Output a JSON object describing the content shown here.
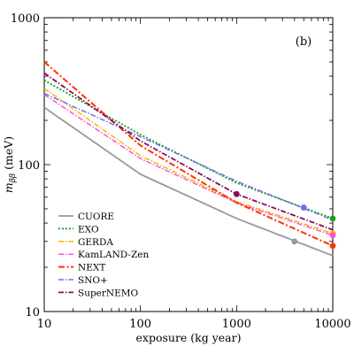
{
  "chart_data": {
    "type": "line",
    "panel_label": "(b)",
    "xlabel": "exposure (kg year)",
    "ylabel_main": "m",
    "ylabel_sub": "ββ",
    "ylabel_unit": "(meV)",
    "xscale": "log",
    "yscale": "log",
    "xlim": [
      10,
      10000
    ],
    "ylim": [
      10,
      1000
    ],
    "x_ticks": [
      {
        "value": 10,
        "label": "10"
      },
      {
        "value": 100,
        "label": "100"
      },
      {
        "value": 1000,
        "label": "1000"
      },
      {
        "value": 10000,
        "label": "10000"
      }
    ],
    "y_ticks": [
      {
        "value": 10,
        "label": "10"
      },
      {
        "value": 100,
        "label": "100"
      },
      {
        "value": 1000,
        "label": "1000"
      }
    ],
    "grid": false,
    "legend_position": "lower-left",
    "series": [
      {
        "name": "CUORE",
        "color": "#999999",
        "dash": "solid",
        "width": 1.8,
        "x": [
          10,
          100,
          1000,
          10000
        ],
        "y": [
          245,
          86,
          43,
          24
        ],
        "marker": {
          "x": 4000,
          "y": 30
        }
      },
      {
        "name": "EXO",
        "color": "#1a9e1a",
        "dash": "dot",
        "width": 1.8,
        "x": [
          10,
          100,
          1000,
          10000
        ],
        "y": [
          375,
          160,
          75,
          43
        ],
        "marker": {
          "x": 10000,
          "y": 43
        }
      },
      {
        "name": "GERDA",
        "color": "#f5b800",
        "dash": "dashdot",
        "width": 1.5,
        "x": [
          10,
          100,
          1000,
          10000
        ],
        "y": [
          330,
          115,
          56,
          34
        ],
        "marker": {
          "x": 10000,
          "y": 34
        }
      },
      {
        "name": "KamLAND-Zen",
        "color": "#ff4fd8",
        "dash": "dashdot",
        "width": 1.5,
        "x": [
          10,
          100,
          1000,
          10000
        ],
        "y": [
          300,
          110,
          55,
          33
        ],
        "marker": {
          "x": 10000,
          "y": 33
        }
      },
      {
        "name": "NEXT",
        "color": "#ff3300",
        "dash": "dashdotbold",
        "width": 2.0,
        "x": [
          10,
          100,
          1000,
          10000
        ],
        "y": [
          500,
          135,
          55,
          28
        ],
        "marker": {
          "x": 10000,
          "y": 28
        }
      },
      {
        "name": "SNO+",
        "color": "#6f6fe8",
        "dash": "dashdot",
        "width": 1.5,
        "x": [
          10,
          100,
          1000,
          10000
        ],
        "y": [
          305,
          155,
          77,
          42
        ],
        "marker": {
          "x": 5000,
          "y": 51
        }
      },
      {
        "name": "SuperNEMO",
        "color": "#8b0a5a",
        "dash": "dashdot",
        "width": 1.8,
        "x": [
          10,
          100,
          1000,
          10000
        ],
        "y": [
          420,
          145,
          63,
          36
        ],
        "marker": {
          "x": 1000,
          "y": 63
        }
      }
    ]
  }
}
